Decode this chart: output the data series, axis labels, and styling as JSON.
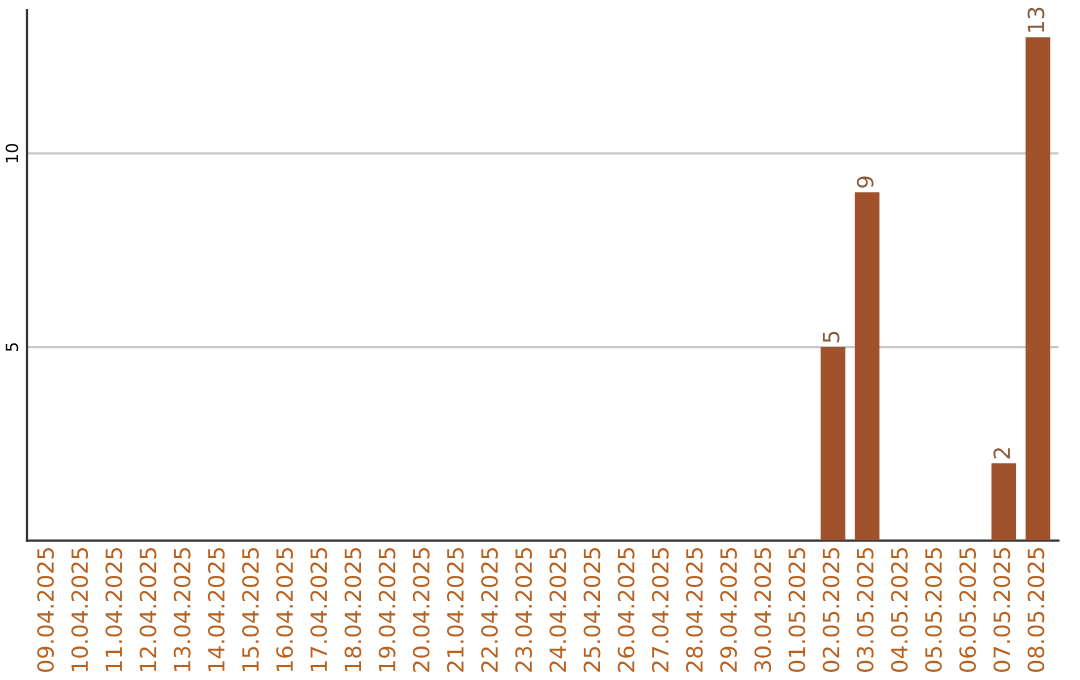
{
  "chart_data": {
    "type": "bar",
    "categories": [
      "09.04.2025",
      "10.04.2025",
      "11.04.2025",
      "12.04.2025",
      "13.04.2025",
      "14.04.2025",
      "15.04.2025",
      "16.04.2025",
      "17.04.2025",
      "18.04.2025",
      "19.04.2025",
      "20.04.2025",
      "21.04.2025",
      "22.04.2025",
      "23.04.2025",
      "24.04.2025",
      "25.04.2025",
      "26.04.2025",
      "27.04.2025",
      "28.04.2025",
      "29.04.2025",
      "30.04.2025",
      "01.05.2025",
      "02.05.2025",
      "03.05.2025",
      "04.05.2025",
      "05.05.2025",
      "06.05.2025",
      "07.05.2025",
      "08.05.2025"
    ],
    "values": [
      0,
      0,
      0,
      0,
      0,
      0,
      0,
      0,
      0,
      0,
      0,
      0,
      0,
      0,
      0,
      0,
      0,
      0,
      0,
      0,
      0,
      0,
      0,
      5,
      9,
      0,
      0,
      0,
      2,
      13
    ],
    "value_labels": [
      null,
      null,
      null,
      null,
      null,
      null,
      null,
      null,
      null,
      null,
      null,
      null,
      null,
      null,
      null,
      null,
      null,
      null,
      null,
      null,
      null,
      null,
      null,
      "5",
      "9",
      null,
      null,
      null,
      "2",
      "13"
    ],
    "color": "#a0522d",
    "ylim": [
      0,
      13.7
    ],
    "yticks": [
      5,
      10
    ],
    "grid": "y",
    "legend": false
  }
}
